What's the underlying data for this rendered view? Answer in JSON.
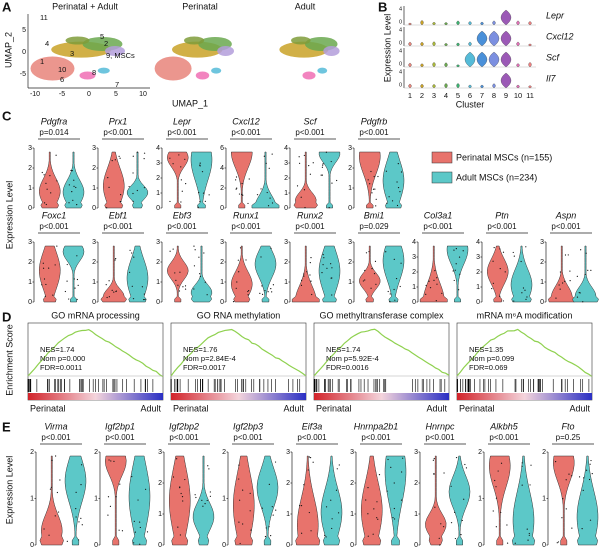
{
  "panel_a": {
    "label": "A",
    "titles": [
      "Perinatal + Adult",
      "Perinatal",
      "Adult"
    ],
    "y_axis": "UMAP_2",
    "x_axis": "UMAP_1",
    "xticks": [
      "-10",
      "-5",
      "0",
      "5",
      "10"
    ],
    "yticks": [
      "5",
      "0",
      "-5"
    ],
    "clusters": [
      "11",
      "4",
      "5",
      "2",
      "3",
      "9, MSCs",
      "1",
      "10",
      "8",
      "6",
      "7"
    ]
  },
  "panel_b": {
    "label": "B",
    "y_axis": "Expression Level",
    "x_axis": "Cluster",
    "genes": [
      "Lepr",
      "Cxcl12",
      "Scf",
      "Il7"
    ],
    "yticks": [
      "4",
      "0"
    ],
    "clusters": [
      "1",
      "2",
      "3",
      "4",
      "5",
      "6",
      "7",
      "8",
      "9",
      "10",
      "11"
    ]
  },
  "panel_c": {
    "label": "C",
    "y_axis": "Expression Level",
    "legend": [
      "Perinatal MSCs (n=155)",
      "Adult MSCs (n=234)"
    ],
    "row1": [
      {
        "gene": "Pdgfra",
        "p": "p=0.014",
        "yticks": [
          "0",
          "1",
          "2",
          "3"
        ]
      },
      {
        "gene": "Prx1",
        "p": "p<0.001",
        "yticks": [
          "0",
          "1",
          "2",
          "3"
        ]
      },
      {
        "gene": "Lepr",
        "p": "p<0.001",
        "yticks": [
          "0",
          "1",
          "2",
          "3",
          "4"
        ]
      },
      {
        "gene": "Cxcl12",
        "p": "p<0.001",
        "yticks": [
          "0",
          "2",
          "4",
          "6"
        ]
      },
      {
        "gene": "Scf",
        "p": "p<0.001",
        "yticks": [
          "0",
          "1",
          "2",
          "3",
          "4"
        ]
      },
      {
        "gene": "Pdgfrb",
        "p": "p<0.001",
        "yticks": [
          "0",
          "1",
          "2",
          "3"
        ]
      }
    ],
    "row2": [
      {
        "gene": "Foxc1",
        "p": "p<0.001",
        "yticks": [
          "0",
          "1",
          "2",
          "3"
        ]
      },
      {
        "gene": "Ebf1",
        "p": "p<0.001",
        "yticks": [
          "0",
          "1",
          "2",
          "3"
        ]
      },
      {
        "gene": "Ebf3",
        "p": "p<0.001",
        "yticks": [
          "0",
          "1",
          "2",
          "3"
        ]
      },
      {
        "gene": "Runx1",
        "p": "p<0.001",
        "yticks": [
          "0",
          "1",
          "2",
          "3"
        ]
      },
      {
        "gene": "Runx2",
        "p": "p<0.001",
        "yticks": [
          "0",
          "1",
          "2",
          "3"
        ]
      },
      {
        "gene": "Bmi1",
        "p": "p=0.029",
        "yticks": [
          "0",
          "1",
          "2",
          "3"
        ]
      },
      {
        "gene": "Col3a1",
        "p": "p<0.001",
        "yticks": [
          "0",
          "1",
          "2",
          "3",
          "4"
        ]
      },
      {
        "gene": "Ptn",
        "p": "p<0.001",
        "yticks": [
          "0",
          "1",
          "2",
          "3",
          "4"
        ]
      },
      {
        "gene": "Aspn",
        "p": "p<0.001",
        "yticks": [
          "0",
          "1",
          "2",
          "3"
        ]
      }
    ]
  },
  "panel_d": {
    "label": "D",
    "y_axis": "Enrichment Score",
    "left": "Perinatal",
    "right": "Adult",
    "plots": [
      {
        "title": "GO mRNA processing",
        "stats": [
          "NES=1.74",
          "Nom p=0.000",
          "FDR=0.0011"
        ]
      },
      {
        "title": "GO RNA methylation",
        "stats": [
          "NES=1.76",
          "Nom p=2.84E-4",
          "FDR=0.0017"
        ]
      },
      {
        "title": "GO methyltransferase complex",
        "stats": [
          "NES=1.74",
          "Nom p=5.92E-4",
          "FDR=0.0016"
        ]
      },
      {
        "title": "mRNA m⁶A modification",
        "stats": [
          "NES=1.35",
          "Nom p=0.099",
          "FDR=0.069"
        ]
      }
    ]
  },
  "panel_e": {
    "label": "E",
    "y_axis": "Expression Level",
    "plots": [
      {
        "gene": "Virma",
        "p": "p<0.001",
        "yticks": [
          "0",
          "1",
          "2"
        ]
      },
      {
        "gene": "Igf2bp1",
        "p": "p<0.001",
        "yticks": [
          "0",
          "1",
          "2"
        ]
      },
      {
        "gene": "Igf2bp2",
        "p": "p<0.001",
        "yticks": [
          "0",
          "1",
          "2",
          "3"
        ]
      },
      {
        "gene": "Igf2bp3",
        "p": "p<0.001",
        "yticks": [
          "0",
          "1",
          "2"
        ]
      },
      {
        "gene": "Eif3a",
        "p": "p<0.001",
        "yticks": [
          "0",
          "1",
          "2",
          "3"
        ]
      },
      {
        "gene": "Hnrnpa2b1",
        "p": "p<0.001",
        "yticks": [
          "0",
          "1",
          "2",
          "3"
        ]
      },
      {
        "gene": "Hnrnpc",
        "p": "p<0.001",
        "yticks": [
          "0",
          "1",
          "2",
          "3"
        ]
      },
      {
        "gene": "Alkbh5",
        "p": "p<0.001",
        "yticks": [
          "0",
          "1",
          "2"
        ]
      },
      {
        "gene": "Fto",
        "p": "p=0.25",
        "yticks": [
          "0",
          "1",
          "2"
        ]
      }
    ]
  }
}
